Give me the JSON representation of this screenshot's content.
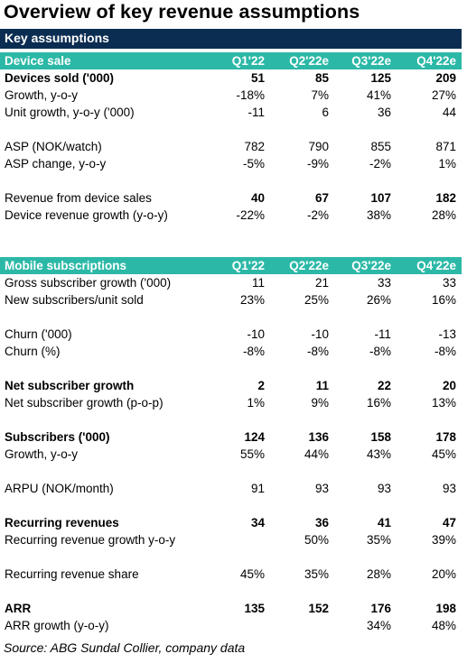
{
  "title": "Overview of key revenue assumptions",
  "banner": "Key assumptions",
  "device": {
    "header": {
      "label": "Device sale",
      "cols": [
        "Q1'22",
        "Q2'22e",
        "Q3'22e",
        "Q4'22e"
      ]
    },
    "rows": [
      {
        "label": "Devices sold ('000)",
        "bold": true,
        "values": [
          "51",
          "85",
          "125",
          "209"
        ]
      },
      {
        "label": "Growth, y-o-y",
        "values": [
          "-18%",
          "7%",
          "41%",
          "27%"
        ]
      },
      {
        "label": "Unit growth, y-o-y ('000)",
        "values": [
          "-11",
          "6",
          "36",
          "44"
        ]
      },
      {
        "spacer": true
      },
      {
        "label": "ASP (NOK/watch)",
        "values": [
          "782",
          "790",
          "855",
          "871"
        ]
      },
      {
        "label": "ASP change, y-o-y",
        "values": [
          "-5%",
          "-9%",
          "-2%",
          "1%"
        ]
      },
      {
        "spacer": true
      },
      {
        "label": "Revenue from device sales",
        "values": [
          "40",
          "67",
          "107",
          "182"
        ],
        "bold_values": true
      },
      {
        "label": "Device revenue growth (y-o-y)",
        "values": [
          "-22%",
          "-2%",
          "38%",
          "28%"
        ]
      }
    ]
  },
  "mobile": {
    "header": {
      "label": "Mobile subscriptions",
      "cols": [
        "Q1'22",
        "Q2'22e",
        "Q3'22e",
        "Q4'22e"
      ]
    },
    "rows": [
      {
        "label": "Gross subscriber growth ('000)",
        "values": [
          "11",
          "21",
          "33",
          "33"
        ]
      },
      {
        "label": "New subscribers/unit sold",
        "values": [
          "23%",
          "25%",
          "26%",
          "16%"
        ]
      },
      {
        "spacer": true
      },
      {
        "label": "Churn ('000)",
        "values": [
          "-10",
          "-10",
          "-11",
          "-13"
        ]
      },
      {
        "label": "Churn (%)",
        "values": [
          "-8%",
          "-8%",
          "-8%",
          "-8%"
        ]
      },
      {
        "spacer": true
      },
      {
        "label": "Net subscriber growth",
        "bold": true,
        "values": [
          "2",
          "11",
          "22",
          "20"
        ]
      },
      {
        "label": "Net subscriber growth (p-o-p)",
        "values": [
          "1%",
          "9%",
          "16%",
          "13%"
        ]
      },
      {
        "spacer": true
      },
      {
        "label": "Subscribers ('000)",
        "bold": true,
        "values": [
          "124",
          "136",
          "158",
          "178"
        ]
      },
      {
        "label": "Growth, y-o-y",
        "values": [
          "55%",
          "44%",
          "43%",
          "45%"
        ]
      },
      {
        "spacer": true
      },
      {
        "label": "ARPU (NOK/month)",
        "values": [
          "91",
          "93",
          "93",
          "93"
        ]
      },
      {
        "spacer": true
      },
      {
        "label": "Recurring revenues",
        "bold": true,
        "values": [
          "34",
          "36",
          "41",
          "47"
        ]
      },
      {
        "label": "Recurring revenue growth y-o-y",
        "values": [
          "",
          "50%",
          "35%",
          "39%"
        ]
      },
      {
        "spacer": true
      },
      {
        "label": "Recurring revenue share",
        "values": [
          "45%",
          "35%",
          "28%",
          "20%"
        ]
      },
      {
        "spacer": true
      },
      {
        "label": "ARR",
        "bold": true,
        "values": [
          "135",
          "152",
          "176",
          "198"
        ]
      },
      {
        "label": "ARR growth (y-o-y)",
        "values": [
          "",
          "",
          "34%",
          "48%"
        ]
      }
    ]
  },
  "source": "Source: ABG Sundal Collier, company data"
}
